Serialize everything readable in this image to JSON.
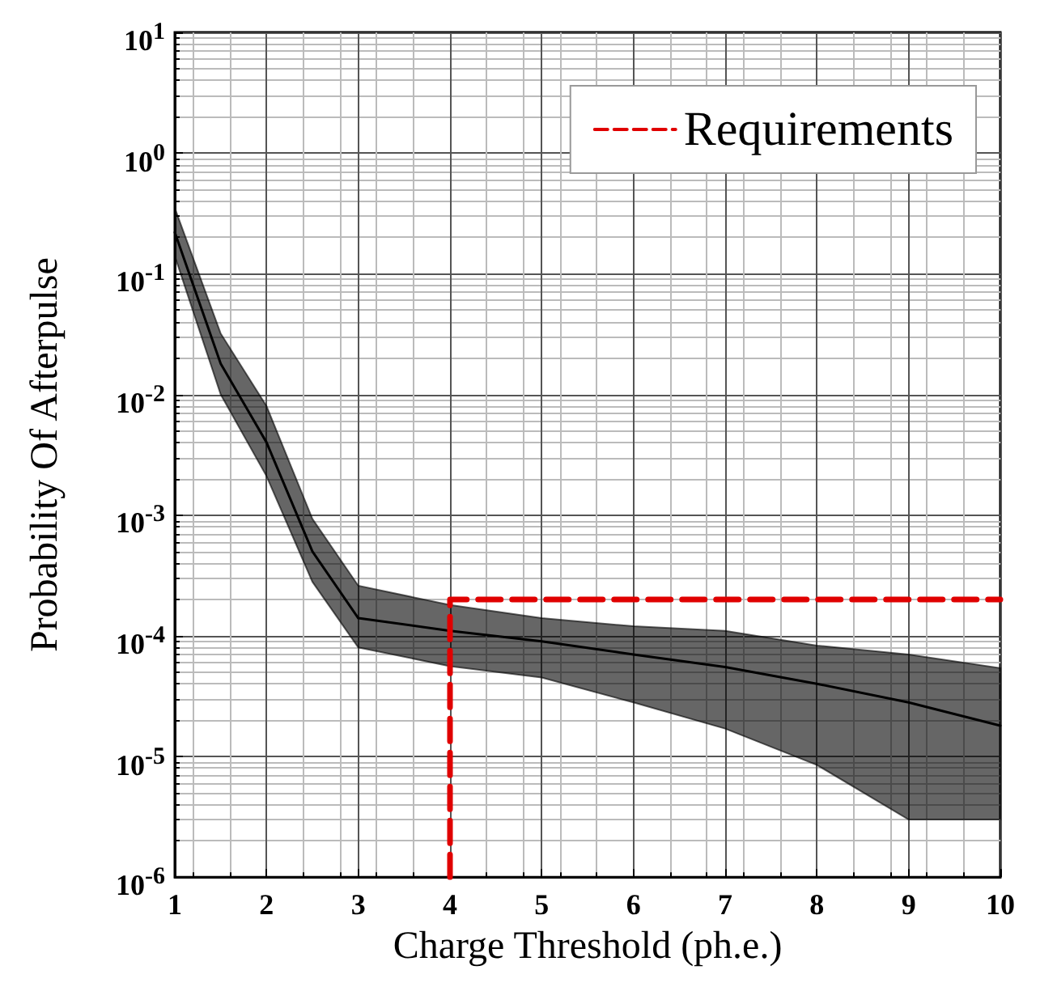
{
  "chart_data": {
    "type": "line",
    "xlabel": "Charge Threshold (ph.e.)",
    "ylabel": "Probability Of Afterpulse",
    "log": "y",
    "grid": true,
    "legend": "top right",
    "marker": "none",
    "xlim": [
      1,
      10
    ],
    "xticks": [
      1,
      2,
      3,
      4,
      5,
      6,
      7,
      8,
      9,
      10
    ],
    "ylim": [
      1e-06,
      10
    ],
    "yticks": [
      {
        "value": 1e-06,
        "label": "10$^{-6}$"
      },
      {
        "value": 1e-05,
        "label": "10$^{-5}$"
      },
      {
        "value": 0.0001,
        "label": "10$^{-4}$"
      },
      {
        "value": 0.001,
        "label": "10$^{-3}$"
      },
      {
        "value": 0.01,
        "label": "10$^{-2}$"
      },
      {
        "value": 0.1,
        "label": "10$^{-1}$"
      },
      {
        "value": 1,
        "label": "10$^{0}$"
      },
      {
        "value": 10,
        "label": "10$^{1}$"
      }
    ],
    "series": [
      {
        "color": "#000000",
        "line_style": "solid",
        "x": [
          1,
          1.5,
          2,
          2.5,
          3,
          4,
          5,
          6,
          7,
          8,
          9,
          10
        ],
        "values": [
          0.22,
          0.018,
          0.004,
          0.0005,
          0.00014,
          0.00011,
          9e-05,
          7e-05,
          5.5e-05,
          4e-05,
          2.8e-05,
          1.8e-05
        ],
        "lower": [
          0.14,
          0.01,
          0.0021,
          0.00028,
          8e-05,
          5.6e-05,
          4.5e-05,
          2.8e-05,
          1.7e-05,
          8.5e-06,
          3e-06,
          3e-06
        ],
        "upper": [
          0.35,
          0.032,
          0.008,
          0.00093,
          0.00026,
          0.00018,
          0.00014,
          0.00012,
          0.00011,
          8.3e-05,
          7e-05,
          5.4e-05
        ]
      },
      {
        "name": "Requirements",
        "color": "#e00000",
        "line_style": "dashed",
        "x": [
          4,
          4,
          10
        ],
        "values": [
          1e-06,
          0.0002,
          0.0002
        ]
      }
    ]
  }
}
